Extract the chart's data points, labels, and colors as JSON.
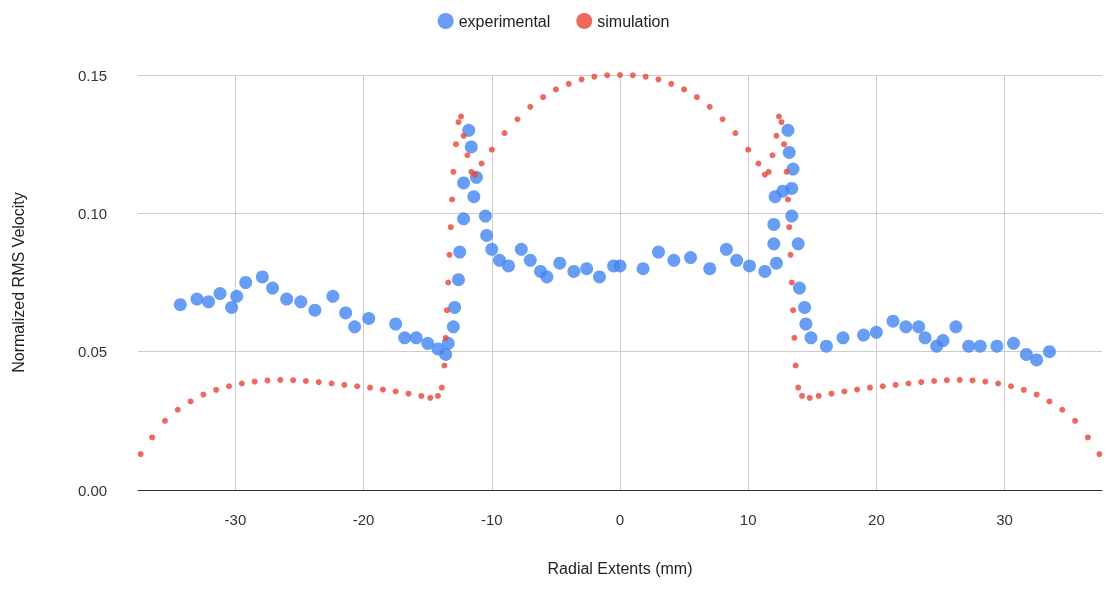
{
  "chart_data": {
    "type": "scatter",
    "xlabel": "Radial Extents (mm)",
    "ylabel": "Normalized RMS Velocity",
    "xlim": [
      -37.6,
      37.6
    ],
    "xticks": [
      -30,
      -20,
      -10,
      0,
      10,
      20,
      30
    ],
    "ylim": [
      0,
      0.15
    ],
    "yticks": [
      {
        "value": 0,
        "label": "0.00"
      },
      0.05,
      {
        "value": 0.1,
        "label": "0.10"
      },
      0.15
    ],
    "grid": true,
    "legend": "top",
    "marker": "circle",
    "series": [
      {
        "name": "experimental",
        "color": "#4285f4",
        "x": [
          -34.3,
          -33.0,
          -32.1,
          -31.2,
          -30.3,
          -29.9,
          -29.2,
          -27.9,
          -27.1,
          -26.0,
          -24.9,
          -23.8,
          -22.4,
          -21.4,
          -20.7,
          -19.6,
          -17.5,
          -16.8,
          -15.9,
          -15.0,
          -14.2,
          -13.6,
          -13.4,
          -13.0,
          -12.9,
          -12.6,
          -12.5,
          -12.2,
          -12.2,
          -11.4,
          -11.8,
          -11.6,
          -11.2,
          -10.5,
          -10.4,
          -10.0,
          -9.4,
          -8.7,
          -7.7,
          -7.0,
          -6.2,
          -5.7,
          -4.7,
          -3.6,
          -2.6,
          -1.6,
          -0.5,
          0,
          1.8,
          3.0,
          4.2,
          5.5,
          7.0,
          8.3,
          9.1,
          10.1,
          11.3,
          12.2,
          12.0,
          12.0,
          12.1,
          12.7,
          13.1,
          13.2,
          13.5,
          13.4,
          13.4,
          13.9,
          14.0,
          14.4,
          14.5,
          14.9,
          16.1,
          17.4,
          19.0,
          20.0,
          21.3,
          22.3,
          23.3,
          23.8,
          24.7,
          25.2,
          26.2,
          27.2,
          28.1,
          29.4,
          30.7,
          31.7,
          32.5,
          33.5
        ],
        "values": [
          0.067,
          0.069,
          0.068,
          0.071,
          0.066,
          0.07,
          0.075,
          0.077,
          0.073,
          0.069,
          0.068,
          0.065,
          0.07,
          0.064,
          0.059,
          0.062,
          0.06,
          0.055,
          0.055,
          0.053,
          0.051,
          0.049,
          0.053,
          0.059,
          0.066,
          0.076,
          0.086,
          0.098,
          0.111,
          0.106,
          0.13,
          0.124,
          0.113,
          0.099,
          0.092,
          0.087,
          0.083,
          0.081,
          0.087,
          0.083,
          0.079,
          0.077,
          0.082,
          0.079,
          0.08,
          0.077,
          0.081,
          0.081,
          0.08,
          0.086,
          0.083,
          0.084,
          0.08,
          0.087,
          0.083,
          0.081,
          0.079,
          0.082,
          0.089,
          0.096,
          0.106,
          0.108,
          0.13,
          0.122,
          0.116,
          0.109,
          0.099,
          0.089,
          0.073,
          0.066,
          0.06,
          0.055,
          0.052,
          0.055,
          0.056,
          0.057,
          0.061,
          0.059,
          0.059,
          0.055,
          0.052,
          0.054,
          0.059,
          0.052,
          0.052,
          0.052,
          0.053,
          0.049,
          0.047,
          0.05
        ]
      },
      {
        "name": "simulation",
        "color": "#ea4335",
        "x": [
          -37.4,
          -36.5,
          -35.5,
          -34.5,
          -33.5,
          -32.5,
          -31.5,
          -30.5,
          -29.5,
          -28.5,
          -27.5,
          -26.5,
          -25.5,
          -24.5,
          -23.5,
          -22.5,
          -21.5,
          -20.5,
          -19.5,
          -18.5,
          -17.5,
          -16.5,
          -15.5,
          -14.8,
          -14.2,
          -13.9,
          -13.7,
          -13.6,
          -13.5,
          -13.4,
          -13.3,
          -13.2,
          -13.1,
          -13.0,
          -12.8,
          -12.6,
          -12.4,
          -12.2,
          -11.9,
          -11.6,
          -11.3,
          -10.8,
          -10.0,
          -9.0,
          -8.0,
          -7.0,
          -6.0,
          -5.0,
          -4.0,
          -3.0,
          -2.0,
          -1.0,
          0,
          1.0,
          2.0,
          3.0,
          4.0,
          5.0,
          6.0,
          7.0,
          8.0,
          9.0,
          10.0,
          10.8,
          11.3,
          11.6,
          11.9,
          12.2,
          12.4,
          12.6,
          12.8,
          13.0,
          13.1,
          13.2,
          13.3,
          13.4,
          13.5,
          13.6,
          13.7,
          13.9,
          14.2,
          14.8,
          15.5,
          16.5,
          17.5,
          18.5,
          19.5,
          20.5,
          21.5,
          22.5,
          23.5,
          24.5,
          25.5,
          26.5,
          27.5,
          28.5,
          29.5,
          30.5,
          31.5,
          32.5,
          33.5,
          34.5,
          35.5,
          36.5,
          37.4
        ],
        "values": [
          0.013,
          0.019,
          0.025,
          0.029,
          0.032,
          0.0345,
          0.0362,
          0.0375,
          0.0385,
          0.0392,
          0.0396,
          0.0398,
          0.0397,
          0.0394,
          0.039,
          0.0385,
          0.038,
          0.0375,
          0.037,
          0.0363,
          0.0356,
          0.0348,
          0.034,
          0.0333,
          0.034,
          0.037,
          0.045,
          0.055,
          0.065,
          0.075,
          0.085,
          0.095,
          0.105,
          0.115,
          0.125,
          0.133,
          0.135,
          0.128,
          0.121,
          0.115,
          0.114,
          0.118,
          0.123,
          0.129,
          0.134,
          0.1385,
          0.142,
          0.1448,
          0.1468,
          0.1484,
          0.1494,
          0.1499,
          0.15,
          0.1499,
          0.1494,
          0.1484,
          0.1468,
          0.1448,
          0.142,
          0.1385,
          0.134,
          0.129,
          0.123,
          0.118,
          0.114,
          0.115,
          0.121,
          0.128,
          0.135,
          0.133,
          0.125,
          0.115,
          0.105,
          0.095,
          0.085,
          0.075,
          0.065,
          0.055,
          0.045,
          0.037,
          0.034,
          0.0333,
          0.034,
          0.0348,
          0.0356,
          0.0363,
          0.037,
          0.0375,
          0.038,
          0.0385,
          0.039,
          0.0394,
          0.0397,
          0.0398,
          0.0396,
          0.0392,
          0.0385,
          0.0375,
          0.0362,
          0.0345,
          0.032,
          0.029,
          0.025,
          0.019,
          0.013
        ]
      }
    ]
  }
}
